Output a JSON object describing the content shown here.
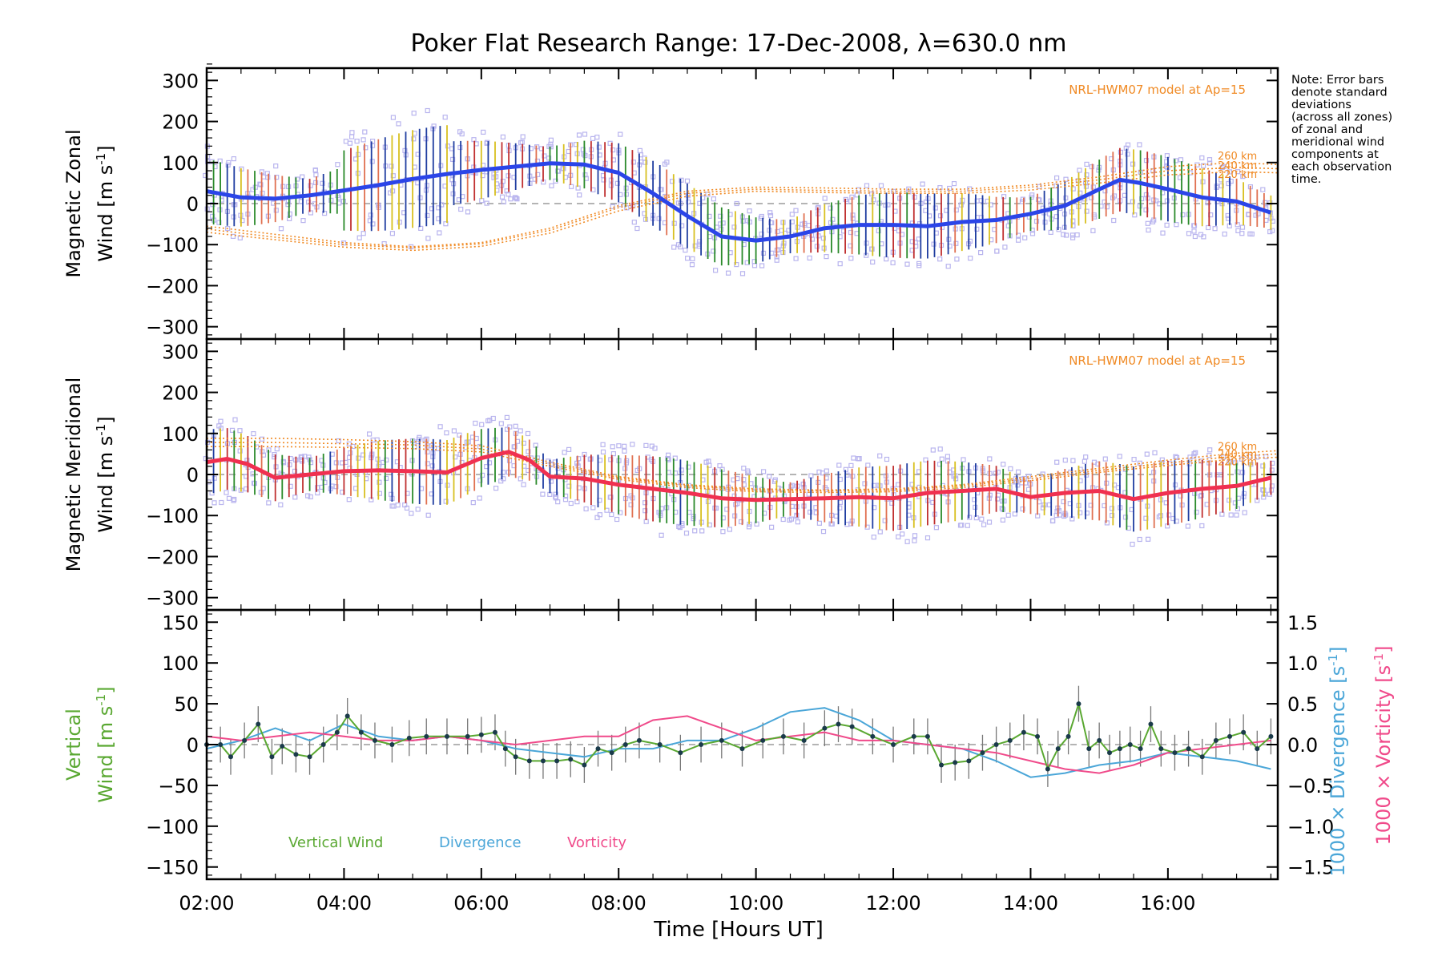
{
  "title": "Poker Flat Research Range: 17-Dec-2008, λ=630.0 nm",
  "note": [
    "Note: Error bars",
    "denote standard",
    "deviations",
    "(across all zones)",
    "of zonal and",
    "meridional wind",
    "components at",
    "each observation",
    "time."
  ],
  "colors": {
    "zonal_line": "#2b45e8",
    "meridional_line": "#f03050",
    "scatter": "#b9b5ee",
    "model": "#f08a24",
    "vertical": "#5aa832",
    "divergence": "#4aa6d8",
    "vorticity": "#f04a8a",
    "errorbar_colors": [
      "#1f3da0",
      "#2a8a2a",
      "#c03030",
      "#d8c020",
      "#e07050"
    ]
  },
  "x_axis": {
    "label": "Time [Hours UT]",
    "range": [
      2.0,
      17.6
    ],
    "ticks": [
      2,
      4,
      6,
      8,
      10,
      12,
      14,
      16
    ],
    "tick_labels": [
      "02:00",
      "04:00",
      "06:00",
      "08:00",
      "10:00",
      "12:00",
      "14:00",
      "16:00"
    ]
  },
  "chart_data": [
    {
      "type": "line",
      "panel": "zonal",
      "ylabel_line1": "Magnetic Zonal",
      "ylabel_line2": "Wind [m s",
      "ylabel_sup": "-1",
      "ylabel_close": "]",
      "ylim": [
        -330,
        330
      ],
      "yticks": [
        -300,
        -200,
        -100,
        0,
        100,
        200,
        300
      ],
      "ytick_labels": [
        "−300",
        "−200",
        "−100",
        "0",
        "100",
        "200",
        "300"
      ],
      "model_label": "NRL-HWM07 model at Ap=15",
      "model_levels": [
        "260 km",
        "240 km",
        "220 km"
      ],
      "series": [
        {
          "x": [
            2.0,
            2.5,
            3.0,
            3.5,
            4.0,
            4.5,
            5.0,
            5.5,
            6.0,
            6.5,
            7.0,
            7.5,
            8.0,
            8.5,
            9.0,
            9.5,
            10.0,
            10.5,
            11.0,
            11.5,
            12.0,
            12.5,
            13.0,
            13.5,
            14.0,
            14.5,
            15.0,
            15.3,
            15.6,
            16.0,
            16.5,
            17.0,
            17.5
          ],
          "y": [
            30,
            15,
            12,
            20,
            32,
            45,
            60,
            72,
            82,
            90,
            98,
            95,
            75,
            25,
            -30,
            -80,
            -90,
            -80,
            -60,
            -52,
            -52,
            -55,
            -45,
            -40,
            -25,
            -5,
            35,
            58,
            50,
            35,
            15,
            5,
            -22
          ]
        }
      ],
      "models": [
        {
          "name": "260 km",
          "x": [
            2.0,
            3.0,
            4.0,
            5.0,
            6.0,
            7.0,
            8.0,
            9.0,
            10.0,
            11.0,
            12.0,
            13.0,
            14.0,
            15.0,
            16.0,
            17.0,
            17.6
          ],
          "y": [
            -55,
            -75,
            -95,
            -105,
            -95,
            -60,
            -5,
            30,
            40,
            38,
            35,
            35,
            45,
            65,
            90,
            100,
            95
          ]
        },
        {
          "name": "240 km",
          "x": [
            2.0,
            3.0,
            4.0,
            5.0,
            6.0,
            7.0,
            8.0,
            9.0,
            10.0,
            11.0,
            12.0,
            13.0,
            14.0,
            15.0,
            16.0,
            17.0,
            17.6
          ],
          "y": [
            -62,
            -82,
            -100,
            -108,
            -98,
            -65,
            -10,
            25,
            35,
            32,
            30,
            30,
            40,
            58,
            80,
            88,
            85
          ]
        },
        {
          "name": "220 km",
          "x": [
            2.0,
            3.0,
            4.0,
            5.0,
            6.0,
            7.0,
            8.0,
            9.0,
            10.0,
            11.0,
            12.0,
            13.0,
            14.0,
            15.0,
            16.0,
            17.0,
            17.6
          ],
          "y": [
            -70,
            -88,
            -106,
            -114,
            -104,
            -72,
            -18,
            18,
            30,
            27,
            25,
            25,
            33,
            50,
            70,
            78,
            75
          ]
        }
      ]
    },
    {
      "type": "line",
      "panel": "meridional",
      "ylabel_line1": "Magnetic Meridional",
      "ylabel_line2": "Wind [m s",
      "ylabel_sup": "-1",
      "ylabel_close": "]",
      "ylim": [
        -330,
        330
      ],
      "yticks": [
        -300,
        -200,
        -100,
        0,
        100,
        200,
        300
      ],
      "ytick_labels": [
        "−300",
        "−200",
        "−100",
        "0",
        "100",
        "200",
        "300"
      ],
      "model_label": "NRL-HWM07 model at Ap=15",
      "model_levels": [
        "260 km",
        "240 km",
        "220 km"
      ],
      "series": [
        {
          "x": [
            2.0,
            2.3,
            2.6,
            3.0,
            3.5,
            4.0,
            4.5,
            5.0,
            5.5,
            6.0,
            6.4,
            6.7,
            7.0,
            7.5,
            8.0,
            8.5,
            9.0,
            9.5,
            10.0,
            10.5,
            11.0,
            11.5,
            12.0,
            12.5,
            13.0,
            13.5,
            14.0,
            14.5,
            15.0,
            15.5,
            16.0,
            16.5,
            17.0,
            17.5
          ],
          "y": [
            30,
            38,
            25,
            -8,
            0,
            8,
            10,
            8,
            5,
            40,
            55,
            35,
            -5,
            -10,
            -25,
            -35,
            -45,
            -58,
            -62,
            -60,
            -58,
            -55,
            -58,
            -45,
            -40,
            -35,
            -55,
            -45,
            -40,
            -60,
            -45,
            -35,
            -28,
            -8
          ]
        }
      ],
      "models": [
        {
          "name": "260 km",
          "x": [
            2.0,
            3.0,
            4.0,
            5.0,
            6.0,
            7.0,
            8.0,
            9.0,
            10.0,
            11.0,
            12.0,
            13.0,
            14.0,
            15.0,
            16.0,
            17.0,
            17.6
          ],
          "y": [
            88,
            88,
            85,
            80,
            70,
            30,
            -5,
            -25,
            -35,
            -38,
            -35,
            -25,
            -5,
            15,
            35,
            52,
            58
          ]
        },
        {
          "name": "240 km",
          "x": [
            2.0,
            3.0,
            4.0,
            5.0,
            6.0,
            7.0,
            8.0,
            9.0,
            10.0,
            11.0,
            12.0,
            13.0,
            14.0,
            15.0,
            16.0,
            17.0,
            17.6
          ],
          "y": [
            78,
            78,
            75,
            72,
            62,
            25,
            -8,
            -28,
            -38,
            -40,
            -38,
            -28,
            -10,
            10,
            28,
            45,
            50
          ]
        },
        {
          "name": "220 km",
          "x": [
            2.0,
            3.0,
            4.0,
            5.0,
            6.0,
            7.0,
            8.0,
            9.0,
            10.0,
            11.0,
            12.0,
            13.0,
            14.0,
            15.0,
            16.0,
            17.0,
            17.6
          ],
          "y": [
            68,
            68,
            66,
            63,
            55,
            20,
            -12,
            -32,
            -42,
            -44,
            -42,
            -32,
            -15,
            5,
            22,
            38,
            42
          ]
        }
      ]
    },
    {
      "type": "line",
      "panel": "vertical",
      "ylabel_line1": "Vertical",
      "ylabel_line2": "Wind [m s",
      "ylabel_sup": "-1",
      "ylabel_close": "]",
      "ylim": [
        -165,
        165
      ],
      "yticks": [
        -150,
        -100,
        -50,
        0,
        50,
        100,
        150
      ],
      "ytick_labels": [
        "−150",
        "−100",
        "−50",
        "0",
        "50",
        "100",
        "150"
      ],
      "right_axes": {
        "ylim": [
          -1.65,
          1.65
        ],
        "yticks": [
          -1.5,
          -1.0,
          -0.5,
          0.0,
          0.5,
          1.0,
          1.5
        ],
        "ytick_labels": [
          "−1.5",
          "−1.0",
          "−0.5",
          "0.0",
          "0.5",
          "1.0",
          "1.5"
        ],
        "label_divergence": "1000 × Divergence [s",
        "label_vorticity": "1000 × Vorticity [s",
        "label_sup": "-1",
        "label_close": "]"
      },
      "legend": [
        "Vertical Wind",
        "Divergence",
        "Vorticity"
      ],
      "series": [
        {
          "name": "Vertical Wind",
          "x": [
            2.0,
            2.2,
            2.35,
            2.55,
            2.75,
            2.95,
            3.1,
            3.3,
            3.5,
            3.7,
            3.9,
            4.05,
            4.25,
            4.45,
            4.7,
            4.95,
            5.2,
            5.5,
            5.8,
            6.0,
            6.2,
            6.35,
            6.5,
            6.7,
            6.9,
            7.1,
            7.3,
            7.5,
            7.7,
            7.9,
            8.1,
            8.3,
            8.6,
            8.9,
            9.2,
            9.5,
            9.8,
            10.1,
            10.4,
            10.7,
            11.0,
            11.2,
            11.4,
            11.7,
            12.0,
            12.3,
            12.5,
            12.7,
            12.9,
            13.1,
            13.3,
            13.5,
            13.7,
            13.9,
            14.1,
            14.25,
            14.4,
            14.55,
            14.7,
            14.85,
            15.0,
            15.15,
            15.3,
            15.45,
            15.6,
            15.75,
            15.9,
            16.1,
            16.3,
            16.5,
            16.7,
            16.9,
            17.1,
            17.3,
            17.5
          ],
          "y": [
            0,
            0,
            -15,
            5,
            25,
            -15,
            -2,
            -12,
            -15,
            0,
            15,
            35,
            15,
            5,
            0,
            8,
            10,
            10,
            10,
            12,
            15,
            -5,
            -15,
            -20,
            -20,
            -20,
            -18,
            -25,
            -5,
            -10,
            0,
            5,
            0,
            -10,
            0,
            5,
            -5,
            5,
            10,
            5,
            20,
            25,
            22,
            10,
            0,
            10,
            10,
            -25,
            -22,
            -20,
            -10,
            0,
            5,
            15,
            10,
            -30,
            -5,
            10,
            50,
            -5,
            5,
            -10,
            -5,
            0,
            -5,
            25,
            -5,
            -10,
            -5,
            -15,
            5,
            10,
            15,
            -5,
            10
          ]
        },
        {
          "name": "Divergence",
          "x": [
            2.0,
            2.5,
            3.0,
            3.5,
            4.0,
            4.5,
            5.0,
            5.5,
            6.0,
            6.5,
            7.0,
            7.5,
            8.0,
            8.5,
            9.0,
            9.5,
            10.0,
            10.5,
            11.0,
            11.5,
            12.0,
            12.5,
            13.0,
            13.5,
            14.0,
            14.5,
            15.0,
            15.5,
            16.0,
            16.5,
            17.0,
            17.5
          ],
          "y": [
            -0.05,
            0.05,
            0.2,
            0.05,
            0.25,
            0.1,
            0.05,
            0.1,
            0.05,
            -0.05,
            -0.1,
            -0.15,
            -0.05,
            -0.05,
            0.05,
            0.05,
            0.2,
            0.4,
            0.45,
            0.3,
            0.05,
            0.0,
            -0.05,
            -0.2,
            -0.4,
            -0.35,
            -0.25,
            -0.2,
            -0.1,
            -0.15,
            -0.2,
            -0.3
          ]
        },
        {
          "name": "Vorticity",
          "x": [
            2.0,
            2.5,
            3.0,
            3.5,
            4.0,
            4.5,
            5.0,
            5.5,
            6.0,
            6.5,
            7.0,
            7.5,
            8.0,
            8.5,
            9.0,
            9.5,
            10.0,
            10.5,
            11.0,
            11.5,
            12.0,
            12.5,
            13.0,
            13.5,
            14.0,
            14.5,
            15.0,
            15.5,
            16.0,
            16.5,
            17.0,
            17.5
          ],
          "y": [
            0.1,
            0.05,
            0.1,
            0.15,
            0.1,
            0.05,
            0.05,
            0.1,
            0.05,
            0.0,
            0.05,
            0.1,
            0.1,
            0.3,
            0.35,
            0.2,
            0.05,
            0.1,
            0.15,
            0.05,
            0.05,
            0.0,
            -0.05,
            -0.1,
            -0.2,
            -0.3,
            -0.35,
            -0.25,
            -0.1,
            -0.05,
            0.0,
            0.05
          ]
        }
      ]
    }
  ]
}
